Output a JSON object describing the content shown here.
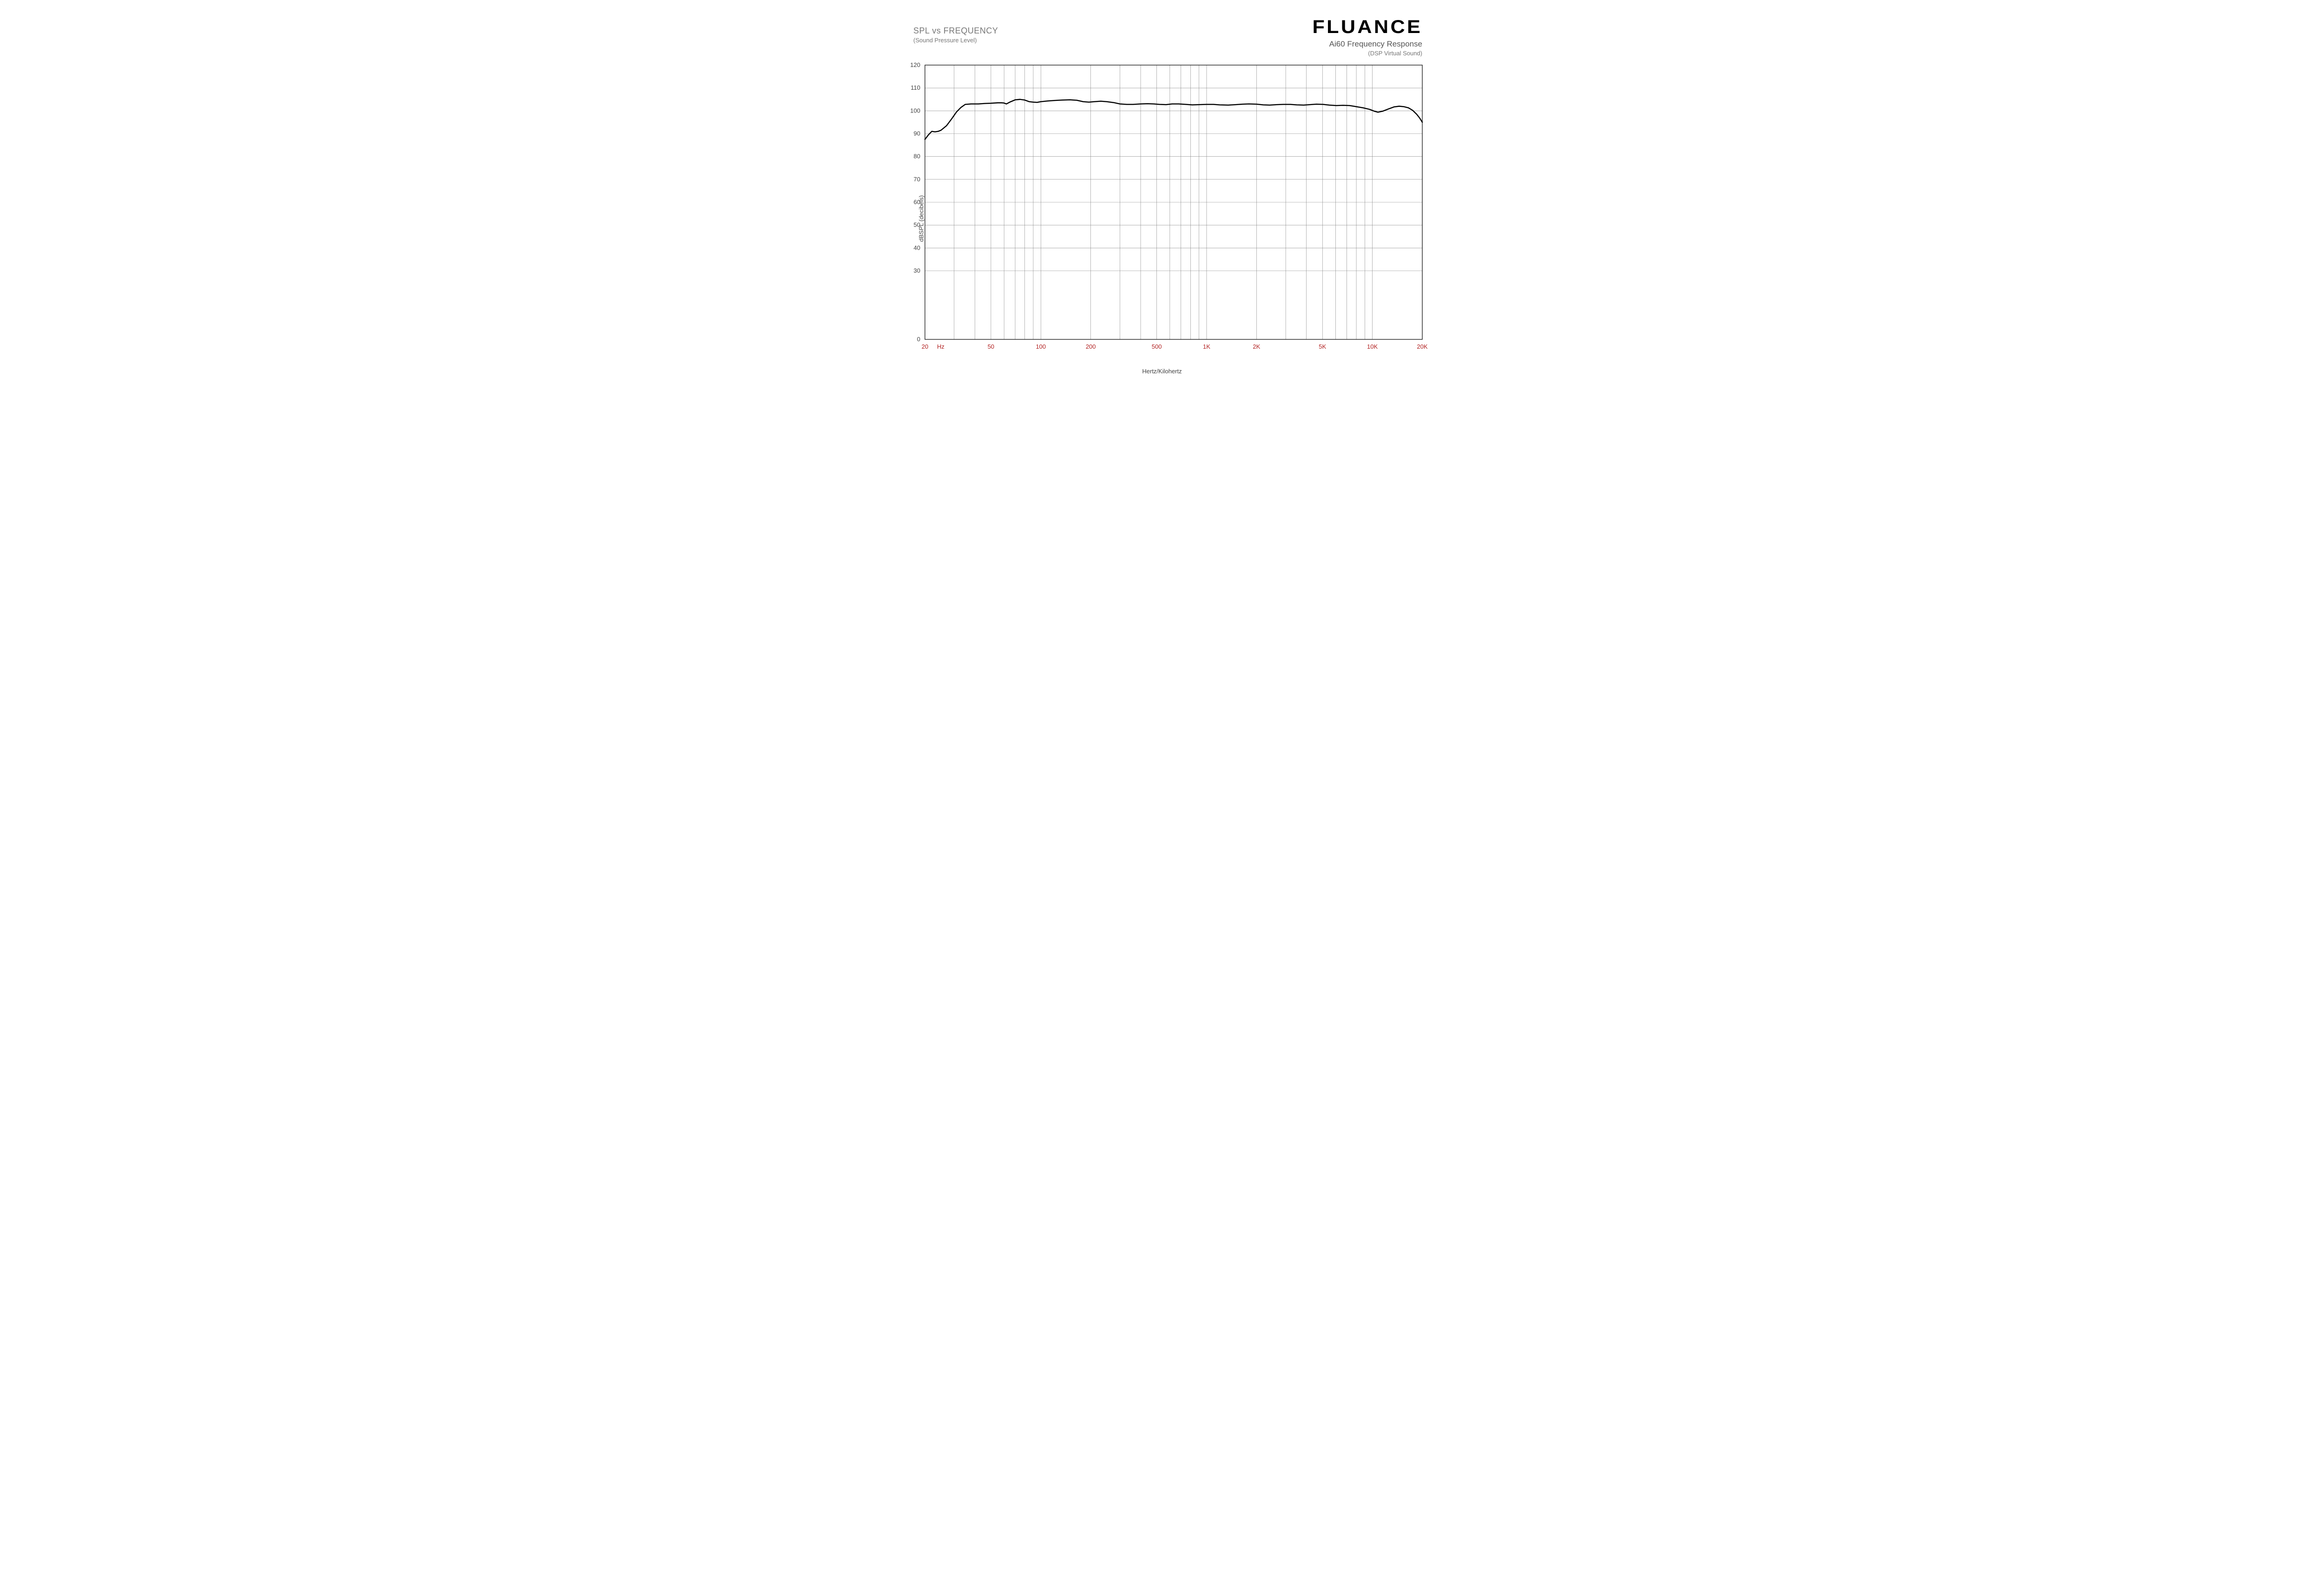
{
  "header": {
    "left_title": "SPL vs FREQUENCY",
    "left_subtitle": "(Sound Pressure Level)",
    "brand": "FLUANCE",
    "right_subtitle1": "Ai60 Frequency Response",
    "right_subtitle2": "(DSP Virtual Sound)"
  },
  "chart": {
    "type": "line",
    "background_color": "#ffffff",
    "border_color": "#000000",
    "border_width": 1.2,
    "grid_color": "#808080",
    "grid_width": 0.6,
    "line_color": "#000000",
    "line_width": 2.4,
    "x_axis": {
      "scale": "log",
      "min": 20,
      "max": 20000,
      "label": "Hertz/Kilohertz",
      "label_color": "#444444",
      "label_fontsize": 13,
      "tick_label_color": "#b22222",
      "tick_label_fontsize": 13,
      "tick_labels": [
        {
          "value": 20,
          "text": "20"
        },
        {
          "value": 23,
          "text": "Hz"
        },
        {
          "value": 50,
          "text": "50"
        },
        {
          "value": 100,
          "text": "100"
        },
        {
          "value": 200,
          "text": "200"
        },
        {
          "value": 500,
          "text": "500"
        },
        {
          "value": 1000,
          "text": "1K"
        },
        {
          "value": 2000,
          "text": "2K"
        },
        {
          "value": 5000,
          "text": "5K"
        },
        {
          "value": 10000,
          "text": "10K"
        },
        {
          "value": 20000,
          "text": "20K"
        }
      ],
      "gridlines": [
        20,
        30,
        40,
        50,
        60,
        70,
        80,
        90,
        100,
        200,
        300,
        400,
        500,
        600,
        700,
        800,
        900,
        1000,
        2000,
        3000,
        4000,
        5000,
        6000,
        7000,
        8000,
        9000,
        10000,
        20000
      ]
    },
    "y_axis": {
      "scale": "linear",
      "min": 0,
      "max": 120,
      "label": "dBSPL (decibels)",
      "label_color": "#444444",
      "label_fontsize": 13,
      "tick_label_color": "#444444",
      "tick_label_fontsize": 13,
      "ticks": [
        0,
        30,
        40,
        50,
        60,
        70,
        80,
        90,
        100,
        110,
        120
      ],
      "gridlines": [
        30,
        40,
        50,
        60,
        70,
        80,
        90,
        100,
        110
      ]
    },
    "series": {
      "points": [
        [
          20,
          87.5
        ],
        [
          21,
          89.5
        ],
        [
          22,
          91.0
        ],
        [
          23,
          90.8
        ],
        [
          24,
          91.0
        ],
        [
          25,
          91.5
        ],
        [
          27,
          93.5
        ],
        [
          29,
          96.5
        ],
        [
          31,
          99.5
        ],
        [
          33,
          101.5
        ],
        [
          35,
          102.8
        ],
        [
          38,
          103.0
        ],
        [
          42,
          103.0
        ],
        [
          46,
          103.2
        ],
        [
          50,
          103.3
        ],
        [
          55,
          103.5
        ],
        [
          58,
          103.5
        ],
        [
          60,
          103.4
        ],
        [
          62,
          103.0
        ],
        [
          65,
          103.8
        ],
        [
          70,
          104.8
        ],
        [
          75,
          105.0
        ],
        [
          80,
          104.7
        ],
        [
          85,
          104.0
        ],
        [
          90,
          103.8
        ],
        [
          95,
          103.7
        ],
        [
          100,
          104.0
        ],
        [
          110,
          104.3
        ],
        [
          120,
          104.5
        ],
        [
          135,
          104.7
        ],
        [
          150,
          104.8
        ],
        [
          165,
          104.6
        ],
        [
          180,
          104.0
        ],
        [
          195,
          103.8
        ],
        [
          210,
          104.0
        ],
        [
          230,
          104.2
        ],
        [
          250,
          104.0
        ],
        [
          275,
          103.6
        ],
        [
          300,
          103.0
        ],
        [
          330,
          102.8
        ],
        [
          360,
          102.8
        ],
        [
          400,
          103.0
        ],
        [
          440,
          103.1
        ],
        [
          480,
          103.0
        ],
        [
          520,
          102.8
        ],
        [
          570,
          102.7
        ],
        [
          620,
          103.0
        ],
        [
          680,
          103.0
        ],
        [
          750,
          102.8
        ],
        [
          820,
          102.6
        ],
        [
          900,
          102.7
        ],
        [
          1000,
          102.8
        ],
        [
          1100,
          102.8
        ],
        [
          1200,
          102.6
        ],
        [
          1350,
          102.5
        ],
        [
          1500,
          102.7
        ],
        [
          1650,
          102.9
        ],
        [
          1800,
          103.0
        ],
        [
          2000,
          102.9
        ],
        [
          2200,
          102.6
        ],
        [
          2400,
          102.5
        ],
        [
          2650,
          102.7
        ],
        [
          2900,
          102.8
        ],
        [
          3200,
          102.8
        ],
        [
          3500,
          102.6
        ],
        [
          3850,
          102.5
        ],
        [
          4200,
          102.7
        ],
        [
          4600,
          102.9
        ],
        [
          5050,
          102.8
        ],
        [
          5500,
          102.5
        ],
        [
          6050,
          102.3
        ],
        [
          6650,
          102.4
        ],
        [
          7300,
          102.3
        ],
        [
          8000,
          101.8
        ],
        [
          8800,
          101.3
        ],
        [
          9650,
          100.6
        ],
        [
          10300,
          99.8
        ],
        [
          10800,
          99.4
        ],
        [
          11500,
          99.8
        ],
        [
          12500,
          100.8
        ],
        [
          13500,
          101.7
        ],
        [
          14500,
          102.0
        ],
        [
          15500,
          101.8
        ],
        [
          16500,
          101.3
        ],
        [
          17500,
          100.2
        ],
        [
          18500,
          98.5
        ],
        [
          19300,
          96.8
        ],
        [
          20000,
          95.0
        ]
      ]
    }
  }
}
